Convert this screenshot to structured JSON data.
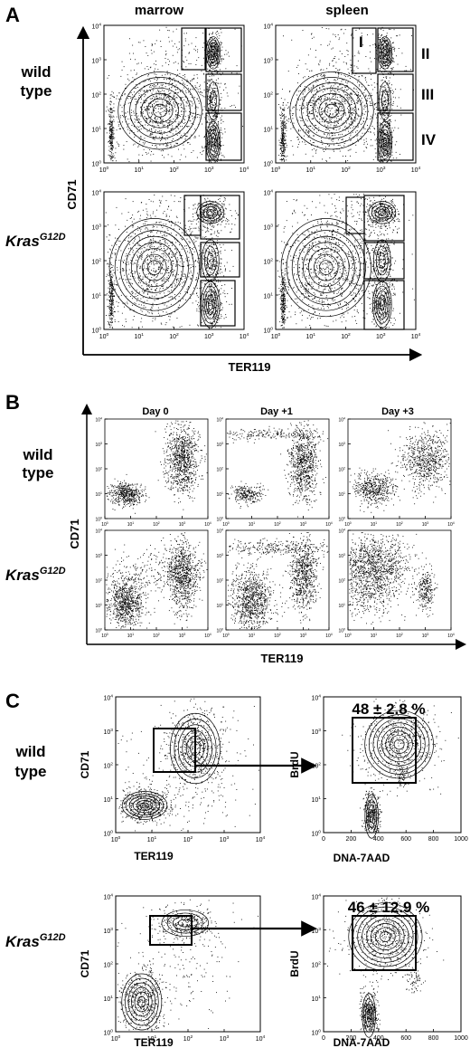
{
  "panels": {
    "A": {
      "letter": "A",
      "col1": "marrow",
      "col2": "spleen",
      "row1": [
        "wild",
        "type"
      ],
      "row2_main": "Kras",
      "row2_sup": "G12D",
      "yaxis": "CD71",
      "xaxis": "TER119",
      "gates": [
        "I",
        "II",
        "III",
        "IV"
      ]
    },
    "B": {
      "letter": "B",
      "cols": [
        "Day 0",
        "Day +1",
        "Day +3"
      ],
      "row1": [
        "wild",
        "type"
      ],
      "row2_main": "Kras",
      "row2_sup": "G12D",
      "yaxis": "CD71",
      "xaxis": "TER119"
    },
    "C": {
      "letter": "C",
      "row1": [
        "wild",
        "type"
      ],
      "row2_main": "Kras",
      "row2_sup": "G12D",
      "left_yaxis": "CD71",
      "left_xaxis": "TER119",
      "right_yaxis": "BrdU",
      "right_xaxis": "DNA-7AAD",
      "pct_wt": "48 ± 2.8 %",
      "pct_kras": "46 ± 12.9 %"
    }
  },
  "log_ticks": [
    "10",
    "10",
    "10",
    "10",
    "10"
  ],
  "log_exps": [
    "0",
    "1",
    "2",
    "3",
    "4"
  ],
  "lin_ticks": [
    "0",
    "200",
    "400",
    "600",
    "800",
    "1000"
  ]
}
